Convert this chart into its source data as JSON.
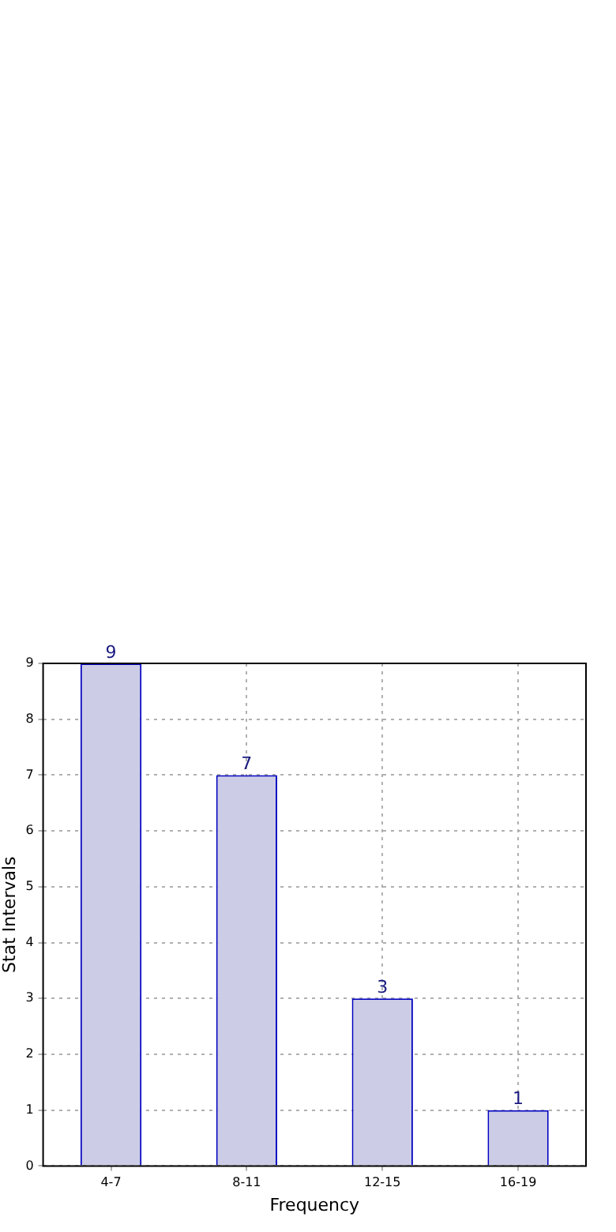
{
  "chart_data": {
    "type": "bar",
    "xlabel": "Frequency",
    "ylabel": "Stat Intervals",
    "categories": [
      "4-7",
      "8-11",
      "12-15",
      "16-19"
    ],
    "values": [
      9,
      7,
      3,
      1
    ],
    "color": "#cccce6",
    "ylim": [
      0,
      9
    ],
    "yticks": [
      0,
      1,
      2,
      3,
      4,
      5,
      6,
      7,
      8,
      9
    ],
    "grid": true,
    "data_labels": true
  }
}
